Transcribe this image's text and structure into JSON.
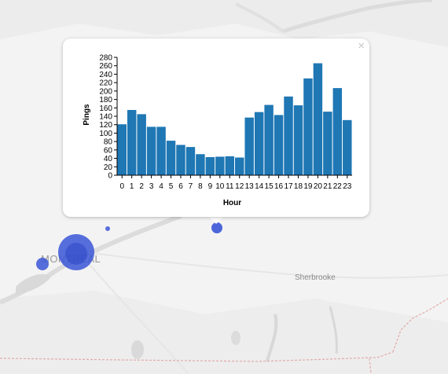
{
  "map": {
    "labels": {
      "montreal": "MONTREAL",
      "sherbrooke": "Sherbrooke"
    },
    "marker_color": "#3a56d6"
  },
  "popup": {
    "close_icon": "close-icon",
    "close_glyph": "×"
  },
  "chart_data": {
    "type": "bar",
    "x": [
      0,
      1,
      2,
      3,
      4,
      5,
      6,
      7,
      8,
      9,
      10,
      11,
      12,
      13,
      14,
      15,
      16,
      17,
      18,
      19,
      20,
      21,
      22,
      23
    ],
    "categories": [
      "0",
      "1",
      "2",
      "3",
      "4",
      "5",
      "6",
      "7",
      "8",
      "9",
      "10",
      "11",
      "12",
      "13",
      "14",
      "15",
      "16",
      "17",
      "18",
      "19",
      "20",
      "21",
      "22",
      "23"
    ],
    "values": [
      121,
      155,
      145,
      115,
      115,
      82,
      72,
      67,
      50,
      43,
      44,
      45,
      42,
      137,
      150,
      167,
      143,
      187,
      166,
      230,
      266,
      151,
      207,
      131
    ],
    "xlabel": "Hour",
    "ylabel": "Pings",
    "ylim": [
      0,
      280
    ],
    "yticks": [
      "0",
      "20",
      "40",
      "60",
      "80",
      "100",
      "120",
      "140",
      "160",
      "180",
      "200",
      "220",
      "240",
      "260",
      "280"
    ],
    "bar_color": "#1f77b4",
    "grid": false
  }
}
